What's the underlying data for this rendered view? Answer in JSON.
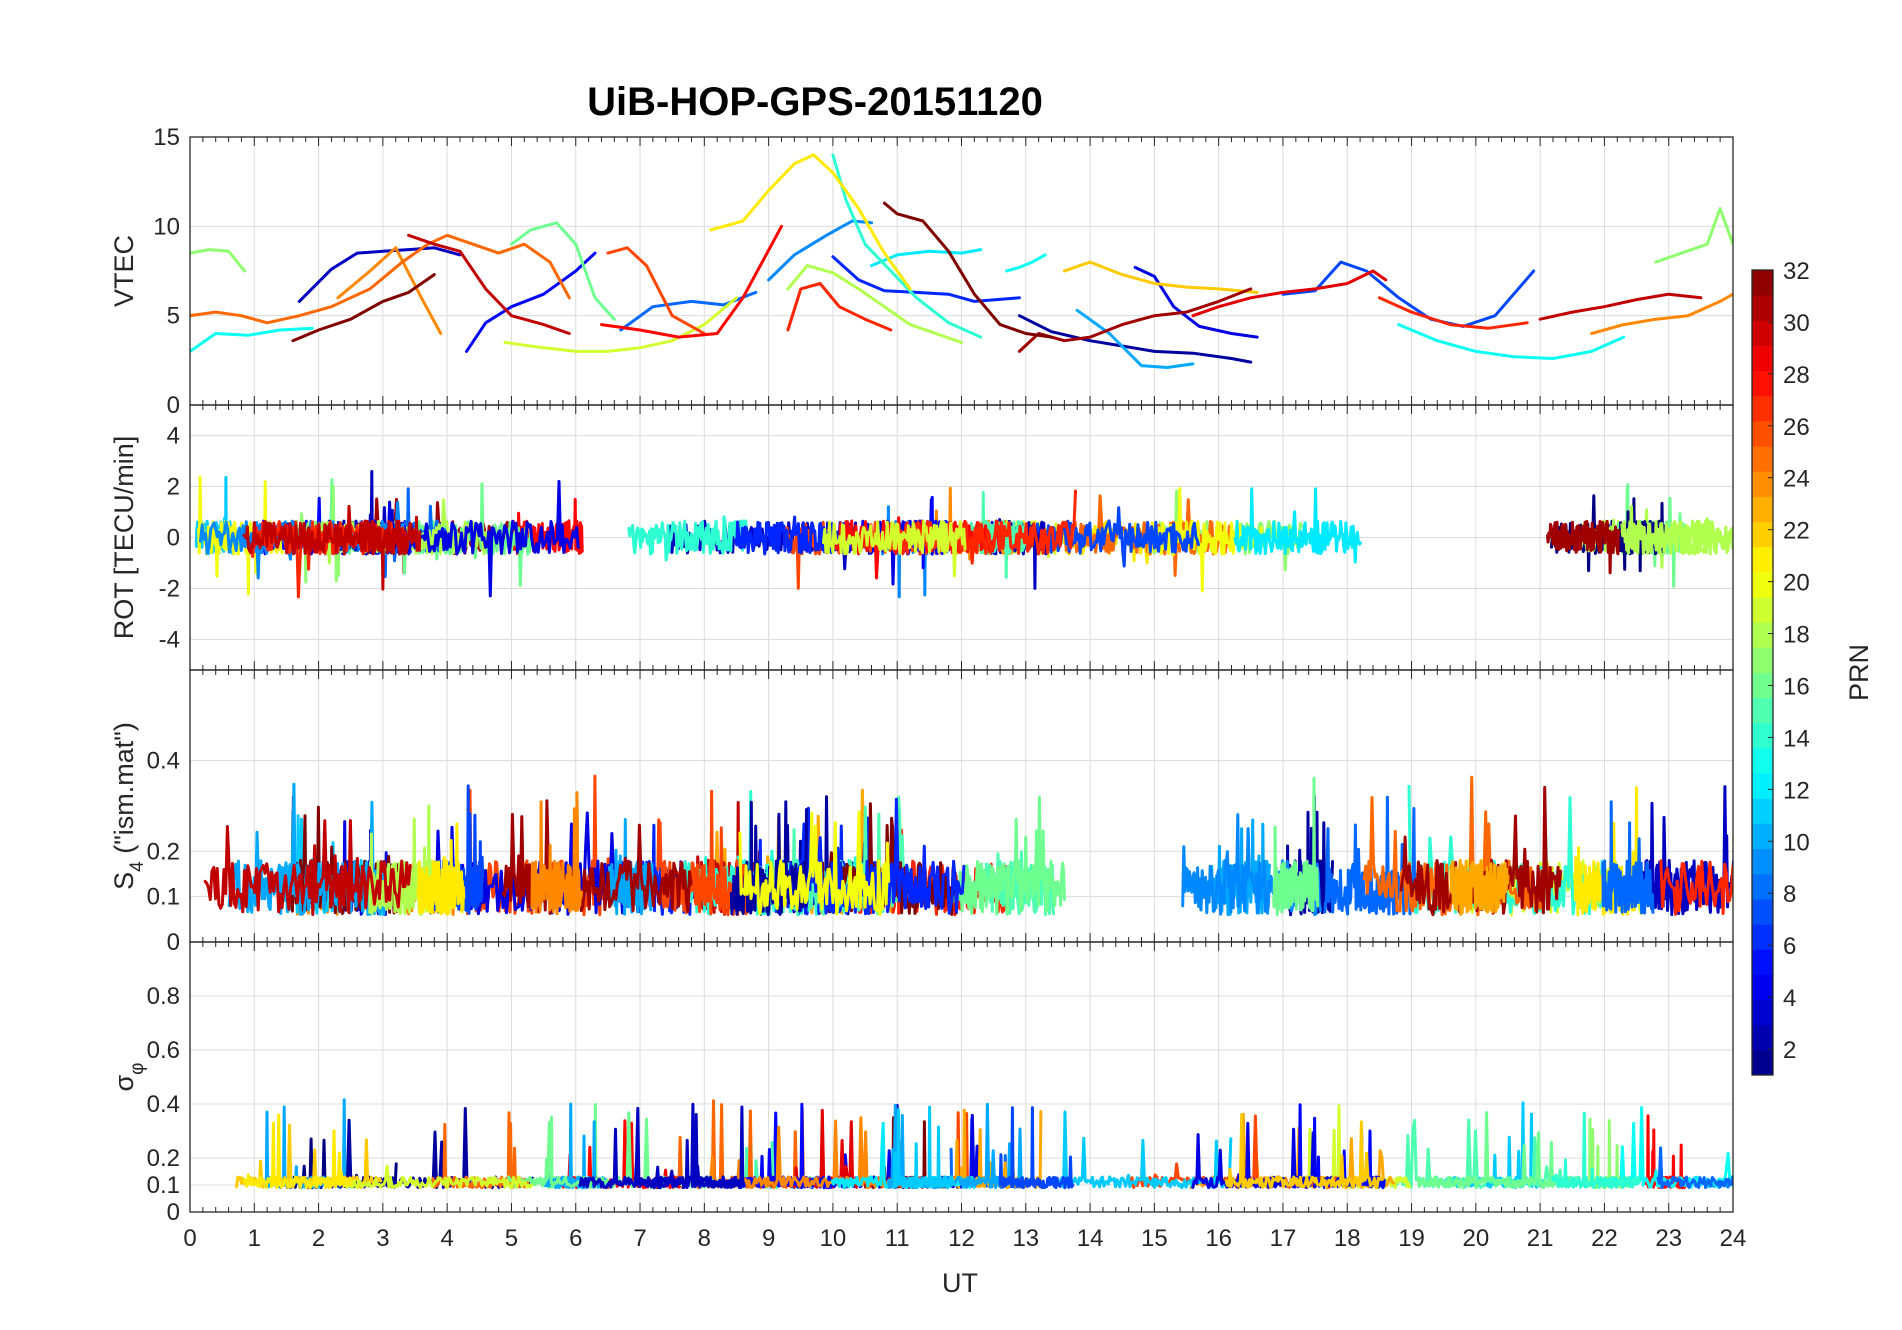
{
  "chart_data": {
    "type": "line",
    "title": "UiB-HOP-GPS-20151120",
    "xlabel": "UT",
    "xlim": [
      0,
      24
    ],
    "xticks": [
      "0",
      "1",
      "2",
      "3",
      "4",
      "5",
      "6",
      "7",
      "8",
      "9",
      "10",
      "11",
      "12",
      "13",
      "14",
      "15",
      "16",
      "17",
      "18",
      "19",
      "20",
      "21",
      "22",
      "23",
      "24"
    ],
    "panels": [
      {
        "id": "vtec",
        "ylabel": "VTEC",
        "ylim": [
          0,
          15
        ],
        "yticks": [
          "0",
          "5",
          "10",
          "15"
        ],
        "series": [
          {
            "prn": 3,
            "x": [
              1.7,
              2.2,
              2.6,
              3.0,
              3.4,
              3.8,
              4.2
            ],
            "y": [
              5.8,
              7.6,
              8.5,
              8.6,
              8.7,
              8.8,
              8.4
            ]
          },
          {
            "prn": 5,
            "x": [
              4.3,
              4.6,
              5.0,
              5.5,
              6.0,
              6.3
            ],
            "y": [
              3.0,
              4.6,
              5.5,
              6.2,
              7.5,
              8.5
            ]
          },
          {
            "prn": 6,
            "x": [
              10.0,
              10.4,
              10.8,
              11.3,
              11.8,
              12.2,
              12.9
            ],
            "y": [
              8.3,
              7.0,
              6.4,
              6.3,
              6.2,
              5.8,
              6.0
            ]
          },
          {
            "prn": 2,
            "x": [
              12.9,
              13.4,
              14.0,
              14.5,
              15.0,
              15.6,
              16.2,
              16.5
            ],
            "y": [
              5.0,
              4.1,
              3.6,
              3.3,
              3.0,
              2.9,
              2.6,
              2.4
            ]
          },
          {
            "prn": 4,
            "x": [
              14.7,
              15.0,
              15.3,
              15.7,
              16.2,
              16.6
            ],
            "y": [
              7.7,
              7.2,
              5.5,
              4.4,
              4.0,
              3.8
            ]
          },
          {
            "prn": 7,
            "x": [
              17.0,
              17.5,
              17.9,
              18.3,
              18.8,
              19.3,
              19.8,
              20.3,
              20.9
            ],
            "y": [
              6.2,
              6.4,
              8.0,
              7.5,
              6.0,
              4.8,
              4.4,
              5.0,
              7.5
            ]
          },
          {
            "prn": 9,
            "x": [
              9.0,
              9.4,
              9.9,
              10.3,
              10.6
            ],
            "y": [
              7.0,
              8.4,
              9.5,
              10.3,
              10.2
            ]
          },
          {
            "prn": 8,
            "x": [
              6.7,
              7.2,
              7.8,
              8.3,
              8.8
            ],
            "y": [
              4.2,
              5.5,
              5.8,
              5.6,
              6.3
            ]
          },
          {
            "prn": 10,
            "x": [
              13.8,
              14.3,
              14.8,
              15.2,
              15.6
            ],
            "y": [
              5.3,
              4.0,
              2.2,
              2.1,
              2.3
            ]
          },
          {
            "prn": 12,
            "x": [
              10.6,
              11.0,
              11.5,
              12.0,
              12.3
            ],
            "y": [
              7.8,
              8.4,
              8.6,
              8.5,
              8.7
            ]
          },
          {
            "prn": 13,
            "x": [
              0.0,
              0.4,
              0.9,
              1.4,
              1.9
            ],
            "y": [
              3.0,
              4.0,
              3.9,
              4.2,
              4.3
            ]
          },
          {
            "prn": 13,
            "x": [
              12.7,
              12.9,
              13.1,
              13.3
            ],
            "y": [
              7.5,
              7.7,
              8.0,
              8.4
            ]
          },
          {
            "prn": 13,
            "x": [
              18.8,
              19.4,
              20.0,
              20.6,
              21.2,
              21.8,
              22.3
            ],
            "y": [
              4.5,
              3.6,
              3.0,
              2.7,
              2.6,
              3.0,
              3.8
            ]
          },
          {
            "prn": 14,
            "x": [
              10.0,
              10.2,
              10.5,
              10.9,
              11.3,
              11.8,
              12.3
            ],
            "y": [
              14.0,
              11.5,
              9.0,
              7.5,
              6.0,
              4.6,
              3.8
            ]
          },
          {
            "prn": 16,
            "x": [
              5.0,
              5.3,
              5.7,
              6.0,
              6.3,
              6.6
            ],
            "y": [
              9.0,
              9.8,
              10.2,
              9.0,
              6.0,
              4.8
            ]
          },
          {
            "prn": 17,
            "x": [
              0.0,
              0.3,
              0.6,
              0.85
            ],
            "y": [
              8.5,
              8.7,
              8.6,
              7.5
            ]
          },
          {
            "prn": 17,
            "x": [
              22.8,
              23.2,
              23.6,
              23.8,
              24.0
            ],
            "y": [
              8.0,
              8.5,
              9.0,
              11.0,
              9.0
            ]
          },
          {
            "prn": 18,
            "x": [
              9.3,
              9.6,
              10.0,
              10.4,
              10.8,
              11.2,
              11.6,
              12.0
            ],
            "y": [
              6.5,
              7.8,
              7.4,
              6.5,
              5.5,
              4.5,
              4.0,
              3.5
            ]
          },
          {
            "prn": 19,
            "x": [
              4.9,
              5.5,
              6.0,
              6.5,
              7.0,
              7.5,
              8.0,
              8.5
            ],
            "y": [
              3.5,
              3.2,
              3.0,
              3.0,
              3.2,
              3.6,
              4.5,
              6.0
            ]
          },
          {
            "prn": 21,
            "x": [
              8.1,
              8.6,
              9.0,
              9.4,
              9.7,
              10.0,
              10.4,
              10.8,
              11.2
            ],
            "y": [
              9.8,
              10.3,
              12.0,
              13.5,
              14.0,
              13.0,
              11.0,
              8.5,
              6.5
            ]
          },
          {
            "prn": 22,
            "x": [
              13.6,
              14.0,
              14.5,
              15.0,
              15.5,
              16.0,
              16.6
            ],
            "y": [
              7.5,
              8.0,
              7.3,
              6.8,
              6.6,
              6.5,
              6.3
            ]
          },
          {
            "prn": 24,
            "x": [
              2.3,
              2.8,
              3.2,
              3.6,
              3.9
            ],
            "y": [
              6.0,
              7.5,
              8.8,
              6.0,
              4.0
            ]
          },
          {
            "prn": 24,
            "x": [
              21.8,
              22.3,
              22.8,
              23.3,
              23.8,
              24.0
            ],
            "y": [
              4.0,
              4.5,
              4.8,
              5.0,
              5.8,
              6.2
            ]
          },
          {
            "prn": 25,
            "x": [
              0.0,
              0.4,
              0.8,
              1.2,
              1.7,
              2.2,
              2.8,
              3.3,
              3.7,
              4.0,
              4.4,
              4.8,
              5.2,
              5.6,
              5.9
            ],
            "y": [
              5.0,
              5.2,
              5.0,
              4.6,
              5.0,
              5.5,
              6.5,
              8.0,
              9.0,
              9.5,
              9.0,
              8.5,
              9.0,
              8.0,
              6.0
            ]
          },
          {
            "prn": 26,
            "x": [
              6.5,
              6.8,
              7.1,
              7.5,
              8.0
            ],
            "y": [
              8.5,
              8.8,
              7.8,
              5.0,
              4.0
            ]
          },
          {
            "prn": 27,
            "x": [
              9.3,
              9.5,
              9.8,
              10.1,
              10.5,
              10.9
            ],
            "y": [
              4.2,
              6.5,
              6.8,
              5.5,
              4.8,
              4.2
            ]
          },
          {
            "prn": 27,
            "x": [
              18.5,
              19.0,
              19.6,
              20.2,
              20.8
            ],
            "y": [
              6.0,
              5.2,
              4.5,
              4.3,
              4.6
            ]
          },
          {
            "prn": 28,
            "x": [
              6.4,
              7.0,
              7.6,
              8.2,
              8.6,
              8.9,
              9.2
            ],
            "y": [
              4.5,
              4.2,
              3.8,
              4.0,
              6.0,
              8.0,
              10.0
            ]
          },
          {
            "prn": 29,
            "x": [
              15.6,
              16.0,
              16.5,
              17.0,
              17.5,
              18.0,
              18.4,
              18.6
            ],
            "y": [
              5.0,
              5.5,
              6.0,
              6.3,
              6.5,
              6.8,
              7.5,
              7.0
            ]
          },
          {
            "prn": 30,
            "x": [
              3.4,
              3.8,
              4.2,
              4.6,
              5.0,
              5.5,
              5.9
            ],
            "y": [
              9.5,
              9.0,
              8.6,
              6.5,
              5.0,
              4.5,
              4.0
            ]
          },
          {
            "prn": 30,
            "x": [
              21.0,
              21.5,
              22.0,
              22.5,
              23.0,
              23.5
            ],
            "y": [
              4.8,
              5.2,
              5.5,
              5.9,
              6.2,
              6.0
            ]
          },
          {
            "prn": 31,
            "x": [
              12.9,
              13.2,
              13.6,
              14.0,
              14.5,
              15.0,
              15.5,
              16.0,
              16.5
            ],
            "y": [
              3.0,
              4.0,
              3.6,
              3.8,
              4.5,
              5.0,
              5.2,
              5.8,
              6.5
            ]
          },
          {
            "prn": 32,
            "x": [
              1.6,
              2.0,
              2.5,
              3.0,
              3.4,
              3.8
            ],
            "y": [
              3.6,
              4.2,
              4.8,
              5.8,
              6.3,
              7.3
            ]
          },
          {
            "prn": 32,
            "x": [
              10.8,
              11.0,
              11.4,
              11.8,
              12.2,
              12.6,
              13.0,
              13.4
            ],
            "y": [
              11.3,
              10.7,
              10.3,
              8.6,
              6.2,
              4.5,
              4.0,
              3.8
            ]
          }
        ]
      },
      {
        "id": "rot",
        "ylabel": "ROT [TECU/min]",
        "ylim": [
          -5.2,
          5.2
        ],
        "yticks": [
          "-4",
          "-2",
          "0",
          "2",
          "4"
        ],
        "noise": true
      },
      {
        "id": "s4",
        "ylabel": "S4 (\"ism.mat\")",
        "ylabel_main": "S",
        "ylabel_sub": "4",
        "ylabel_rest": " (\"ism.mat\")",
        "ylim": [
          0,
          0.6
        ],
        "yticks": [
          "0",
          "0.1",
          "0.2",
          "0.4"
        ],
        "noise": true
      },
      {
        "id": "sigphi",
        "ylabel": "σφ",
        "ylabel_main": "σ",
        "ylabel_sub": "φ",
        "ylim": [
          0,
          1
        ],
        "yticks": [
          "0",
          "0.1",
          "0.2",
          "0.4",
          "0.6",
          "0.8"
        ],
        "noise": true
      }
    ],
    "colorbar": {
      "label": "PRN",
      "range": [
        1,
        32
      ],
      "ticks": [
        "2",
        "4",
        "6",
        "8",
        "10",
        "12",
        "14",
        "16",
        "18",
        "20",
        "22",
        "24",
        "26",
        "28",
        "30",
        "32"
      ],
      "colormap": "jet"
    }
  }
}
